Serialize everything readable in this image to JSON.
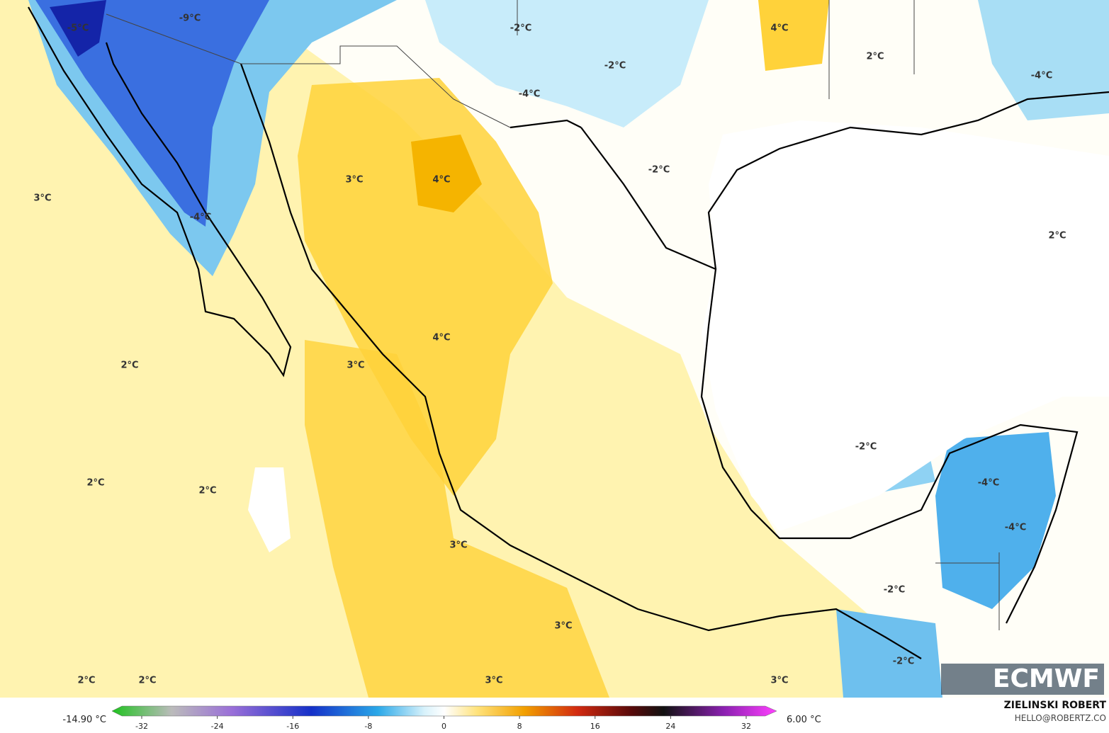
{
  "map": {
    "labels": [
      "-5°C",
      "-9°C",
      "-2°C",
      "4°C",
      "2°C",
      "-2°C",
      "-4°C",
      "-4°C",
      "3°C",
      "3°C",
      "4°C",
      "-2°C",
      "-4°C",
      "2°C",
      "4°C",
      "2°C",
      "3°C",
      "-2°C",
      "2°C",
      "2°C",
      "-4°C",
      "-4°C",
      "3°C",
      "-2°C",
      "3°C",
      "2°C",
      "2°C",
      "3°C",
      "3°C",
      "-2°C"
    ],
    "logo": "ECMWF"
  },
  "colorbar": {
    "min_label": "-14.90 °C",
    "max_label": "6.00 °C",
    "ticks": [
      -32,
      -24,
      -16,
      -8,
      0,
      8,
      16,
      24,
      32
    ]
  },
  "credit": {
    "author": "ZIELINSKI ROBERT",
    "contact": "HELLO@ROBERTZ.CO"
  }
}
